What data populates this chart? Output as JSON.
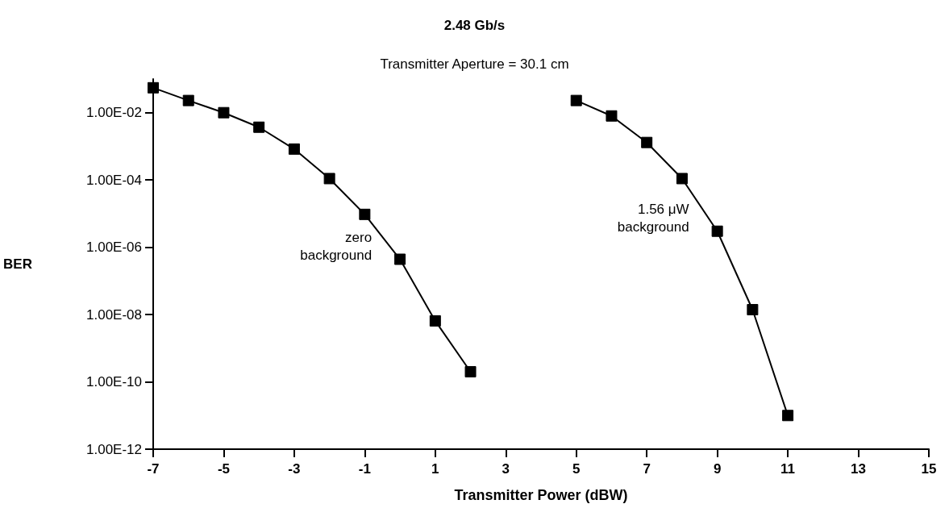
{
  "chart_data": {
    "type": "line",
    "title": "2.48 Gb/s",
    "subtitle": "Transmitter Aperture = 30.1 cm",
    "xlabel": "Transmitter Power (dBW)",
    "ylabel": "BER",
    "series": [
      {
        "name": "zero\nbackground",
        "x": [
          -7,
          -6,
          -5,
          -4,
          -3,
          -2,
          -1,
          0,
          1,
          2
        ],
        "values": [
          0.055,
          0.023,
          0.01,
          0.0037,
          0.00083,
          0.00011,
          9.5e-06,
          4.4e-07,
          6.5e-09,
          2e-10
        ],
        "color": "#000000"
      },
      {
        "name": "1.56 μW\nbackground",
        "x": [
          5,
          6,
          7,
          8,
          9,
          10,
          11
        ],
        "values": [
          0.023,
          0.008,
          0.0013,
          0.00011,
          3e-06,
          1.4e-08,
          1e-11
        ],
        "color": "#000000"
      }
    ],
    "log": "y",
    "xlim": [
      -7,
      15
    ],
    "xticks": [
      -7,
      -5,
      -3,
      -1,
      1,
      3,
      5,
      7,
      9,
      11,
      13,
      15
    ],
    "ylim": [
      1e-12,
      0.1
    ],
    "yticks": [
      {
        "value": 1e-12,
        "label": "1.00E-12"
      },
      {
        "value": 1e-10,
        "label": "1.00E-10"
      },
      {
        "value": 1e-08,
        "label": "1.00E-08"
      },
      {
        "value": 1e-06,
        "label": "1.00E-06"
      },
      {
        "value": 0.0001,
        "label": "1.00E-04"
      },
      {
        "value": 0.01,
        "label": "1.00E-02"
      }
    ],
    "grid": false,
    "legend": false,
    "marker": "square",
    "line_style": "solid"
  }
}
